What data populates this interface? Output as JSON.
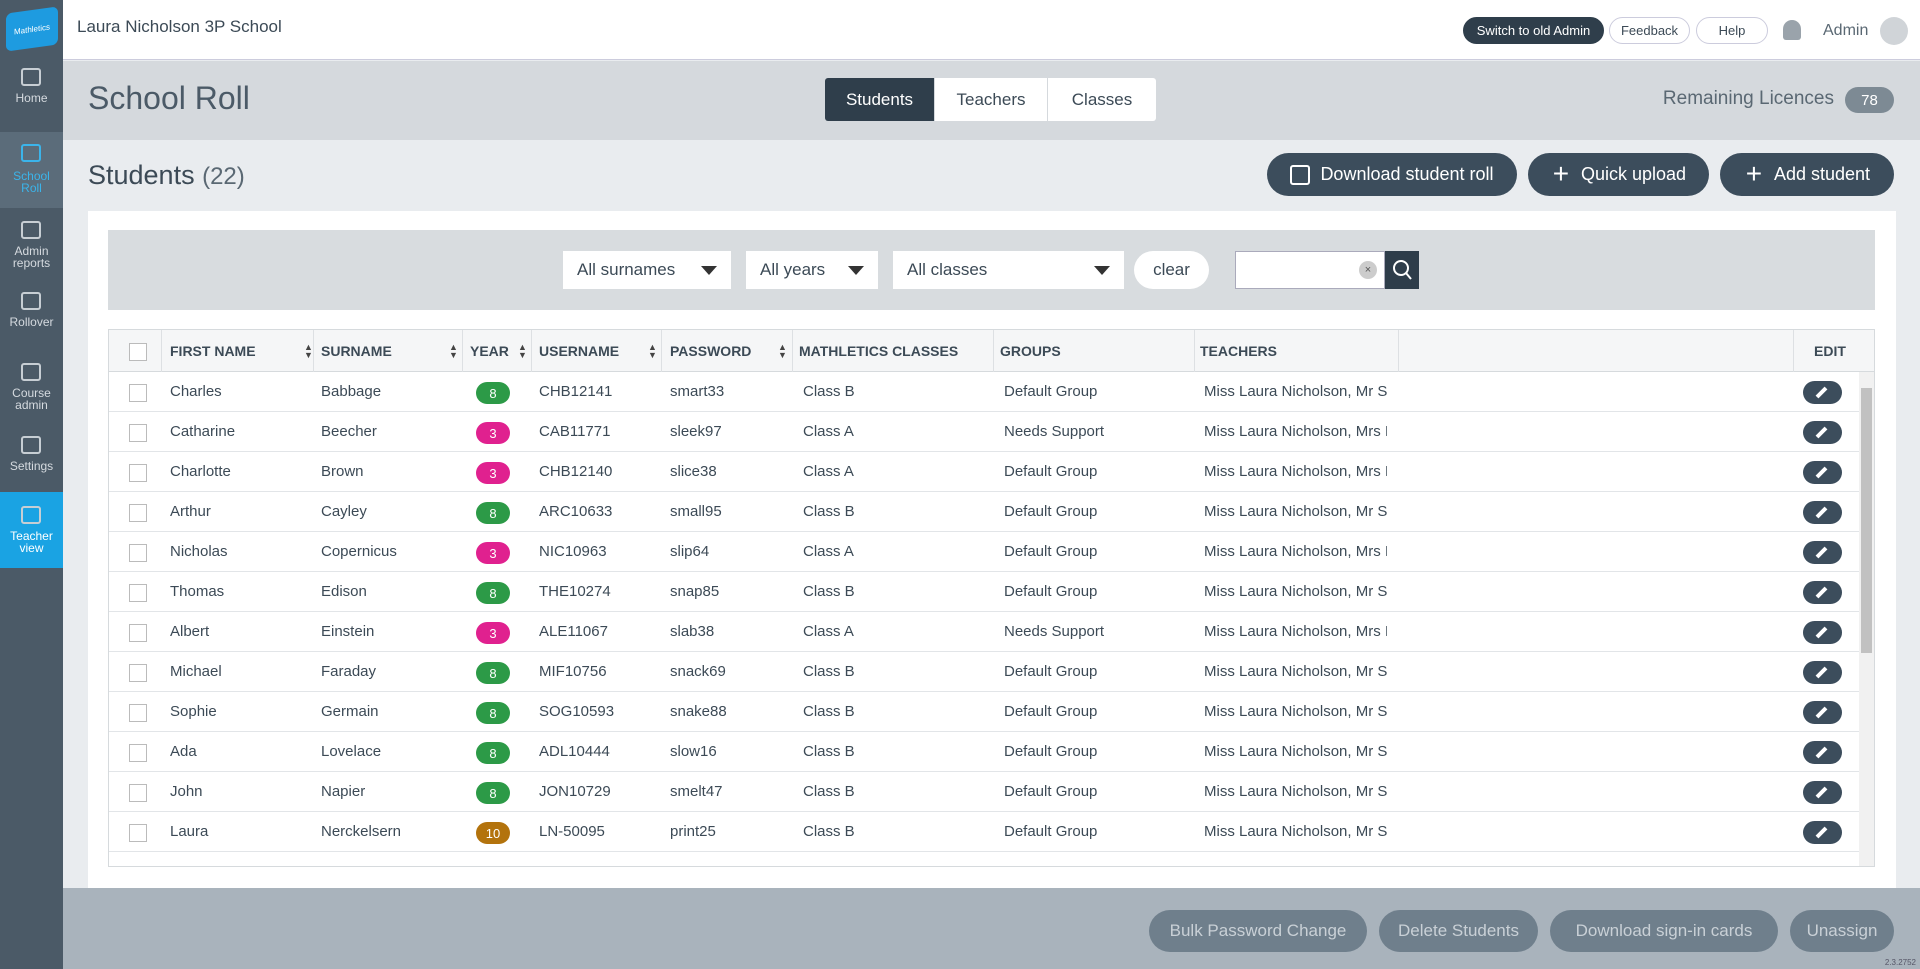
{
  "header": {
    "logo": "Mathletics",
    "school": "Laura Nicholson 3P School",
    "buttons": [
      "Switch to old Admin",
      "Feedback",
      "Help"
    ],
    "user": "Admin"
  },
  "sidebar": [
    "Home",
    "School Roll",
    "Admin reports",
    "Rollover",
    "Course admin",
    "Settings",
    "Teacher view"
  ],
  "page": {
    "title": "School Roll",
    "tabs": [
      "Students",
      "Teachers",
      "Classes"
    ],
    "licences_label": "Remaining Licences",
    "licences": 78
  },
  "section": {
    "title": "Students",
    "count": "(22)",
    "actions": [
      "Download student roll",
      "Quick upload",
      "Add student"
    ]
  },
  "filters": {
    "selects": [
      "All surnames",
      "All years",
      "All classes"
    ],
    "clear": "clear"
  },
  "table": {
    "columns": [
      "FIRST NAME",
      "SURNAME",
      "YEAR",
      "USERNAME",
      "PASSWORD",
      "MATHLETICS CLASSES",
      "GROUPS",
      "TEACHERS",
      "EDIT"
    ],
    "year_colors": {
      "3": "#e0218f",
      "8": "#2c9a47",
      "10": "#b3730d"
    },
    "rows": [
      [
        "Charles",
        "Babbage",
        8,
        "CHB12141",
        "smart33",
        "Class B",
        "Default Group",
        "Miss Laura Nicholson, Mr S"
      ],
      [
        "Catharine",
        "Beecher",
        3,
        "CAB11771",
        "sleek97",
        "Class A",
        "Needs Support",
        "Miss Laura Nicholson, Mrs I"
      ],
      [
        "Charlotte",
        "Brown",
        3,
        "CHB12140",
        "slice38",
        "Class A",
        "Default Group",
        "Miss Laura Nicholson, Mrs I"
      ],
      [
        "Arthur",
        "Cayley",
        8,
        "ARC10633",
        "small95",
        "Class B",
        "Default Group",
        "Miss Laura Nicholson, Mr S"
      ],
      [
        "Nicholas",
        "Copernicus",
        3,
        "NIC10963",
        "slip64",
        "Class A",
        "Default Group",
        "Miss Laura Nicholson, Mrs I"
      ],
      [
        "Thomas",
        "Edison",
        8,
        "THE10274",
        "snap85",
        "Class B",
        "Default Group",
        "Miss Laura Nicholson, Mr S"
      ],
      [
        "Albert",
        "Einstein",
        3,
        "ALE11067",
        "slab38",
        "Class A",
        "Needs Support",
        "Miss Laura Nicholson, Mrs I"
      ],
      [
        "Michael",
        "Faraday",
        8,
        "MIF10756",
        "snack69",
        "Class B",
        "Default Group",
        "Miss Laura Nicholson, Mr S"
      ],
      [
        "Sophie",
        "Germain",
        8,
        "SOG10593",
        "snake88",
        "Class B",
        "Default Group",
        "Miss Laura Nicholson, Mr S"
      ],
      [
        "Ada",
        "Lovelace",
        8,
        "ADL10444",
        "slow16",
        "Class B",
        "Default Group",
        "Miss Laura Nicholson, Mr S"
      ],
      [
        "John",
        "Napier",
        8,
        "JON10729",
        "smelt47",
        "Class B",
        "Default Group",
        "Miss Laura Nicholson, Mr S"
      ],
      [
        "Laura",
        "Nerckelsern",
        10,
        "LN-50095",
        "print25",
        "Class B",
        "Default Group",
        "Miss Laura Nicholson, Mr S"
      ]
    ]
  },
  "footer": {
    "buttons": [
      "Bulk Password Change",
      "Delete Students",
      "Download sign-in cards",
      "Unassign"
    ],
    "version": "2.3.2752"
  }
}
